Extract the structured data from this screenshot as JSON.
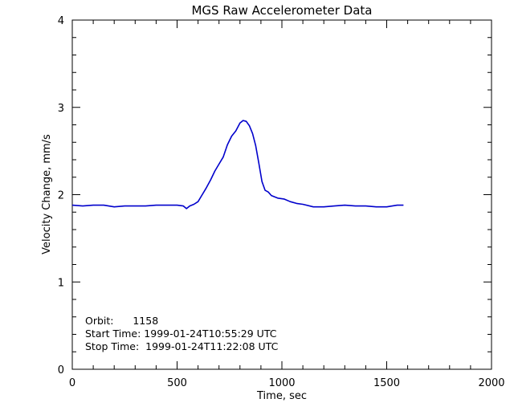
{
  "chart_data": {
    "type": "line",
    "title": "MGS Raw Accelerometer Data",
    "xlabel": "Time, sec",
    "ylabel": "Velocity Change, mm/s",
    "xlim": [
      0,
      2000
    ],
    "ylim": [
      0,
      4
    ],
    "x_ticks": [
      "0",
      "500",
      "1000",
      "1500",
      "2000"
    ],
    "y_ticks": [
      "0",
      "1",
      "2",
      "3",
      "4"
    ],
    "grid": false,
    "line_color": "#0000cc",
    "series": [
      {
        "x": [
          0,
          50,
          100,
          150,
          200,
          250,
          300,
          350,
          400,
          450,
          500,
          530,
          545,
          560,
          580,
          600,
          620,
          640,
          660,
          680,
          700,
          720,
          740,
          760,
          780,
          800,
          815,
          830,
          845,
          860,
          875,
          890,
          905,
          920,
          935,
          950,
          980,
          1010,
          1040,
          1070,
          1100,
          1150,
          1200,
          1250,
          1300,
          1350,
          1400,
          1450,
          1500,
          1550,
          1580
        ],
        "y": [
          1.88,
          1.87,
          1.88,
          1.88,
          1.86,
          1.87,
          1.87,
          1.87,
          1.88,
          1.88,
          1.88,
          1.87,
          1.84,
          1.87,
          1.89,
          1.92,
          2.0,
          2.08,
          2.17,
          2.27,
          2.35,
          2.43,
          2.57,
          2.67,
          2.73,
          2.82,
          2.85,
          2.84,
          2.79,
          2.7,
          2.56,
          2.36,
          2.15,
          2.05,
          2.03,
          1.99,
          1.96,
          1.95,
          1.92,
          1.9,
          1.89,
          1.86,
          1.86,
          1.87,
          1.88,
          1.87,
          1.87,
          1.86,
          1.86,
          1.88,
          1.88
        ]
      }
    ]
  },
  "annotation": {
    "orbit": "Orbit:      1158",
    "start": "Start Time: 1999-01-24T10:55:29 UTC",
    "stop": "Stop Time:  1999-01-24T11:22:08 UTC"
  }
}
